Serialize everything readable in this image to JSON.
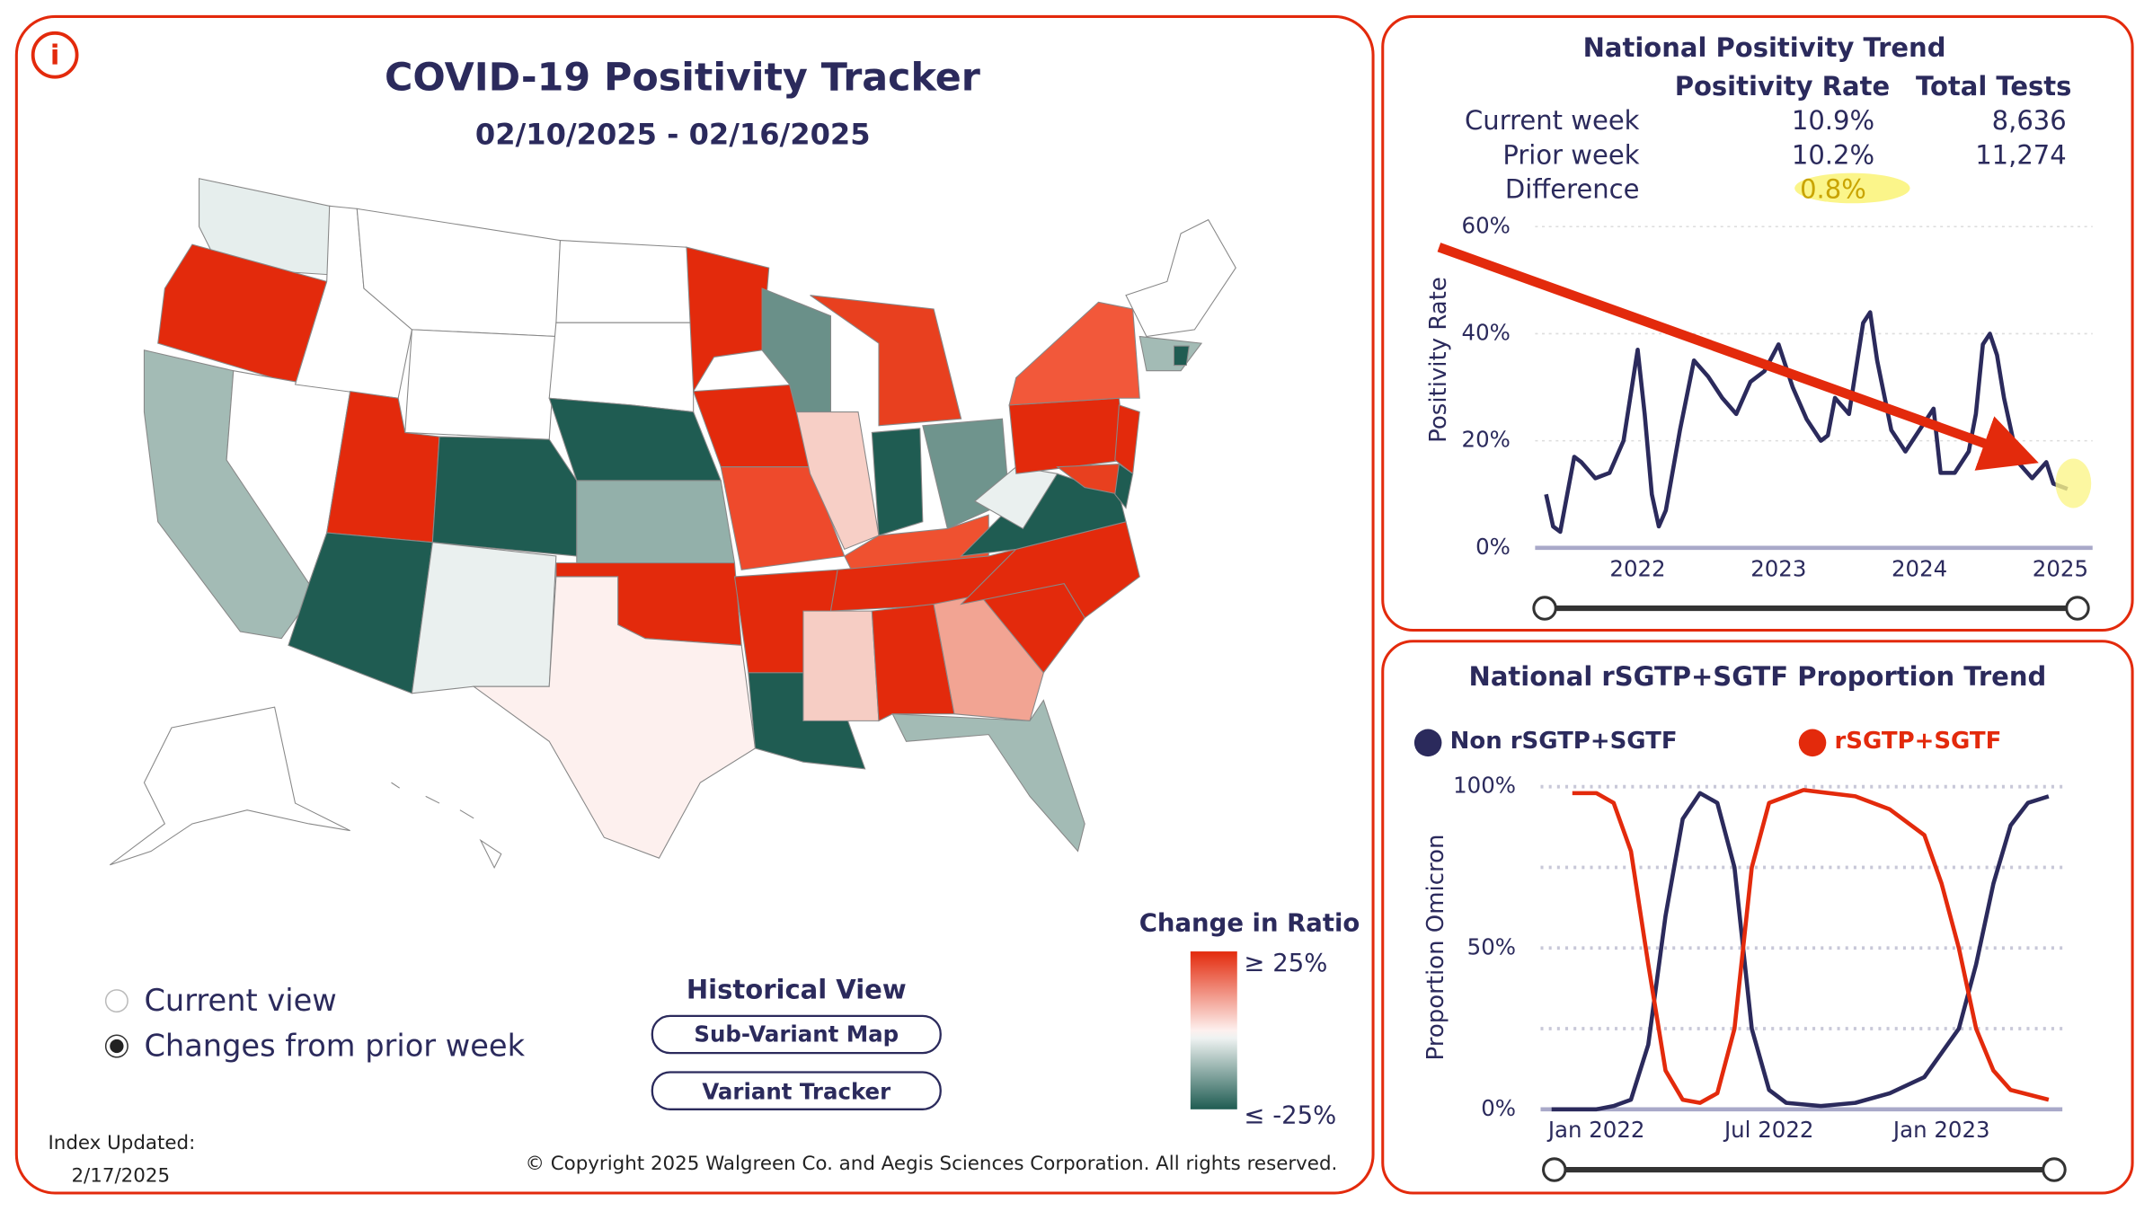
{
  "header": {
    "title": "COVID-19 Positivity Tracker",
    "date_range": "02/10/2025 - 02/16/2025"
  },
  "view_options": [
    {
      "label": "Current view",
      "selected": false
    },
    {
      "label": "Changes from prior week",
      "selected": true
    }
  ],
  "historical_view": {
    "title": "Historical View",
    "buttons": [
      "Sub-Variant Map",
      "Variant Tracker"
    ]
  },
  "legend": {
    "title": "Change in Ratio",
    "max_label": "≥ 25%",
    "min_label": "≤ -25%"
  },
  "footer": {
    "index_updated": "Index Updated:",
    "date": "2/17/2025",
    "copyright": "© Copyright 2025 Walgreen Co. and Aegis Sciences Corporation. All rights reserved."
  },
  "positivity_table": {
    "title": "National Positivity Trend",
    "columns": [
      "Positivity Rate",
      "Total Tests"
    ],
    "rows": [
      [
        "Current week",
        "10.9%",
        "8,636"
      ],
      [
        "Prior week",
        "10.2%",
        "11,274"
      ],
      [
        "Difference",
        "0.8%"
      ]
    ]
  },
  "chart_data": [
    {
      "type": "line",
      "ylabel": "Positivity Rate",
      "xlim": [
        2021.35,
        2025.18
      ],
      "xticks": [
        2022,
        2023,
        2024,
        2025
      ],
      "ylim": [
        0,
        60
      ],
      "yticks": [
        {
          "value": 0,
          "label": "0%"
        },
        {
          "value": 20,
          "label": "20%"
        },
        {
          "value": 40,
          "label": "40%"
        },
        {
          "value": 60,
          "label": "60%"
        }
      ],
      "series": [
        {
          "color": "#2b2a5c",
          "x": [
            2021.35,
            2021.4,
            2021.45,
            2021.5,
            2021.55,
            2021.6,
            2021.7,
            2021.8,
            2021.9,
            2022.0,
            2022.05,
            2022.1,
            2022.15,
            2022.2,
            2022.3,
            2022.4,
            2022.5,
            2022.6,
            2022.7,
            2022.8,
            2022.9,
            2023.0,
            2023.1,
            2023.2,
            2023.3,
            2023.35,
            2023.4,
            2023.5,
            2023.6,
            2023.65,
            2023.7,
            2023.8,
            2023.9,
            2024.0,
            2024.1,
            2024.15,
            2024.25,
            2024.35,
            2024.4,
            2024.45,
            2024.5,
            2024.55,
            2024.6,
            2024.7,
            2024.8,
            2024.9,
            2024.95,
            2025.05
          ],
          "values": [
            10,
            4,
            3,
            10,
            17,
            16,
            13,
            14,
            20,
            37,
            25,
            10,
            4,
            7,
            22,
            35,
            32,
            28,
            25,
            31,
            33,
            38,
            30,
            24,
            20,
            21,
            28,
            25,
            42,
            44,
            35,
            22,
            18,
            22,
            26,
            14,
            14,
            18,
            25,
            38,
            40,
            36,
            28,
            16,
            13,
            16,
            12,
            11
          ]
        }
      ]
    },
    {
      "type": "line",
      "title": "National rSGTP+SGTF Proportion Trend",
      "ylabel": "Proportion Omicron",
      "xlim": [
        2021.87,
        2023.33
      ],
      "xticks": [
        {
          "value": 2022,
          "label": "Jan 2022"
        },
        {
          "value": 2022.5,
          "label": "Jul 2022"
        },
        {
          "value": 2023,
          "label": "Jan 2023"
        }
      ],
      "ylim": [
        0,
        100
      ],
      "yticks": [
        {
          "value": 0,
          "label": "0%"
        },
        {
          "value": 50,
          "label": "50%"
        },
        {
          "value": 100,
          "label": "100%"
        }
      ],
      "ygrid": [
        25,
        50,
        75,
        100
      ],
      "series": [
        {
          "name": "Non rSGTP+SGTF",
          "color": "#2b2a5c",
          "x": [
            2021.87,
            2022.0,
            2022.05,
            2022.1,
            2022.15,
            2022.2,
            2022.25,
            2022.3,
            2022.35,
            2022.4,
            2022.45,
            2022.5,
            2022.55,
            2022.65,
            2022.75,
            2022.85,
            2022.95,
            2023.05,
            2023.1,
            2023.15,
            2023.2,
            2023.25,
            2023.31
          ],
          "values": [
            0,
            0,
            1,
            3,
            20,
            60,
            90,
            98,
            95,
            75,
            25,
            6,
            2,
            1,
            2,
            5,
            10,
            25,
            45,
            70,
            88,
            95,
            97
          ]
        },
        {
          "name": "rSGTP+SGTF",
          "color": "#e32a0c",
          "x": [
            2021.93,
            2022.0,
            2022.05,
            2022.1,
            2022.15,
            2022.2,
            2022.25,
            2022.3,
            2022.35,
            2022.4,
            2022.45,
            2022.5,
            2022.6,
            2022.75,
            2022.85,
            2022.95,
            2023.0,
            2023.05,
            2023.1,
            2023.15,
            2023.2,
            2023.31
          ],
          "values": [
            98,
            98,
            95,
            80,
            45,
            12,
            3,
            2,
            5,
            25,
            75,
            95,
            99,
            97,
            93,
            85,
            70,
            50,
            25,
            12,
            6,
            3
          ]
        }
      ]
    }
  ]
}
